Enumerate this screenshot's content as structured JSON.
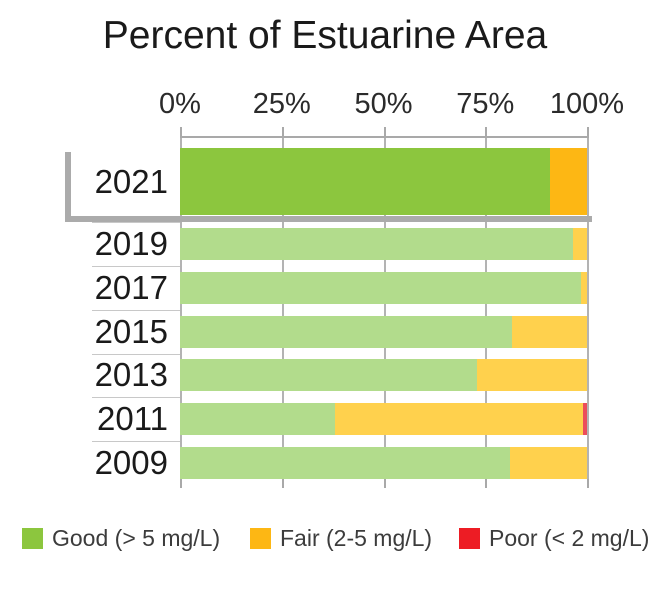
{
  "chart_data": {
    "type": "bar",
    "orientation": "horizontal",
    "stacked": true,
    "title": "Percent of Estuarine Area",
    "xlabel": "",
    "ylabel": "",
    "x_axis": {
      "range": [
        0,
        100
      ],
      "ticks": [
        "0%",
        "25%",
        "50%",
        "75%",
        "100%"
      ],
      "tick_values": [
        0,
        25,
        50,
        75,
        100
      ]
    },
    "categories": [
      "2021",
      "2019",
      "2017",
      "2015",
      "2013",
      "2011",
      "2009"
    ],
    "series": [
      {
        "name": "Good (> 5 mg/L)",
        "key": "good",
        "values": [
          91,
          96.5,
          98.5,
          81.5,
          73,
          38,
          81
        ]
      },
      {
        "name": "Fair (2-5 mg/L)",
        "key": "fair",
        "values": [
          9,
          3.5,
          1.5,
          18.5,
          27,
          61,
          19
        ]
      },
      {
        "name": "Poor (< 2 mg/L)",
        "key": "poor",
        "values": [
          0,
          0,
          0,
          0,
          0,
          1,
          0
        ]
      }
    ],
    "highlighted_category": "2021",
    "legend_position": "bottom",
    "grid": "vertical-ticks-only"
  },
  "legend": {
    "items": [
      {
        "label": "Good (> 5 mg/L)",
        "color_key": "good"
      },
      {
        "label": "Fair (2-5 mg/L)",
        "color_key": "fair"
      },
      {
        "label": "Poor (< 2 mg/L)",
        "color_key": "poor"
      }
    ]
  },
  "colors": {
    "good": "#8CC63E",
    "fair": "#FDB714",
    "poor": "#ED1C24",
    "good_faded": "#B2DC8C",
    "fair_faded": "#FFD14D",
    "poor_faded": "#EC4D5A",
    "axis_gray": "#A9A9A9",
    "bracket_gray": "#ABABAB",
    "separator_gray": "#C8C8C8"
  }
}
